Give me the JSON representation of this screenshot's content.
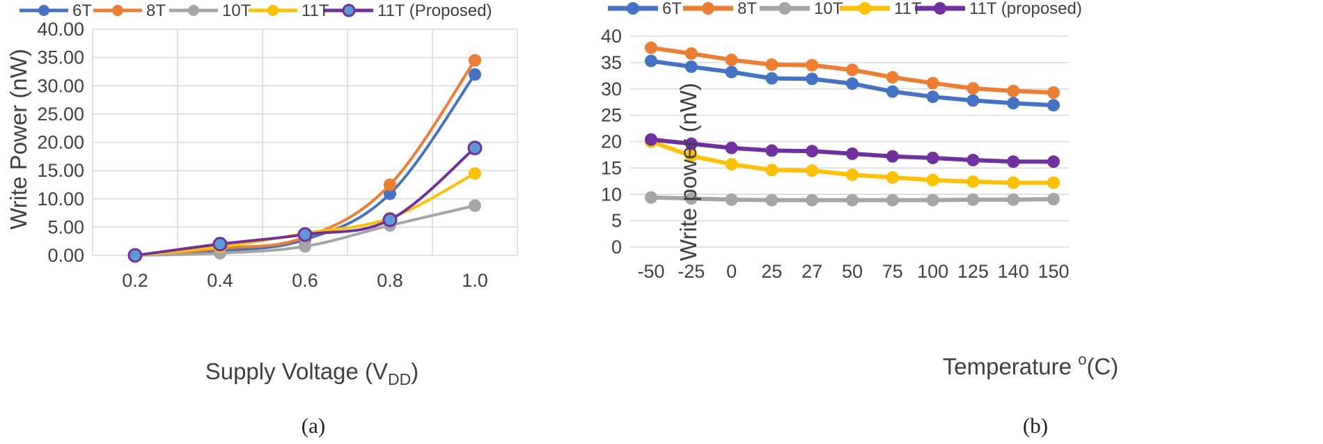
{
  "chart_data": [
    {
      "type": "line",
      "panel_label": "(a)",
      "smooth": true,
      "x": [
        0.2,
        0.4,
        0.6,
        0.8,
        1.0
      ],
      "categories": [
        "0.2",
        "0.4",
        "0.6",
        "0.8",
        "1.0"
      ],
      "xlabel_main": "Supply Voltage (V",
      "xlabel_sub": "DD",
      "xlabel_end": ")",
      "ylabel": "Write Power (nW)",
      "ylim": [
        0,
        40
      ],
      "yticks": [
        "0.00",
        "5.00",
        "10.00",
        "15.00",
        "20.00",
        "25.00",
        "30.00",
        "35.00",
        "40.00"
      ],
      "grid": true,
      "legend_position": "top",
      "series": [
        {
          "name": "6T",
          "color": "#4472c4",
          "values": [
            0.0,
            0.8,
            2.8,
            10.9,
            32.0
          ]
        },
        {
          "name": "8T",
          "color": "#ed7d31",
          "values": [
            0.0,
            1.2,
            3.2,
            12.5,
            34.5
          ]
        },
        {
          "name": "10T",
          "color": "#a5a5a5",
          "values": [
            0.0,
            0.4,
            1.6,
            5.3,
            8.8
          ]
        },
        {
          "name": "11T",
          "color": "#ffc000",
          "values": [
            0.0,
            1.5,
            3.9,
            6.6,
            14.5
          ]
        },
        {
          "name": "11T (Proposed)",
          "color": "#7030a0",
          "marker_fill": "#5b9bd5",
          "values": [
            0.0,
            2.0,
            3.7,
            6.3,
            19.0
          ]
        }
      ]
    },
    {
      "type": "line",
      "panel_label": "(b)",
      "smooth": false,
      "categories": [
        "-50",
        "-25",
        "0",
        "25",
        "27",
        "50",
        "75",
        "100",
        "125",
        "140",
        "150"
      ],
      "xlabel_main": "Temperature ",
      "xlabel_sup": "o",
      "xlabel_end": "(C)",
      "ylabel": "Write power (nW)",
      "ylim": [
        0,
        40
      ],
      "yticks": [
        "0",
        "5",
        "10",
        "15",
        "20",
        "25",
        "30",
        "35",
        "40"
      ],
      "grid": true,
      "legend_position": "top",
      "series": [
        {
          "name": "6T",
          "color": "#4472c4",
          "values": [
            35.3,
            34.2,
            33.2,
            32.0,
            31.9,
            31.0,
            29.5,
            28.5,
            27.8,
            27.3,
            26.9
          ]
        },
        {
          "name": "8T",
          "color": "#ed7d31",
          "values": [
            37.8,
            36.7,
            35.5,
            34.6,
            34.5,
            33.6,
            32.2,
            31.1,
            30.1,
            29.6,
            29.3
          ]
        },
        {
          "name": "10T",
          "color": "#a5a5a5",
          "values": [
            9.4,
            9.2,
            9.0,
            8.9,
            8.9,
            8.9,
            8.9,
            8.9,
            9.0,
            9.0,
            9.1
          ]
        },
        {
          "name": "11T",
          "color": "#ffc000",
          "values": [
            20.0,
            17.3,
            15.7,
            14.6,
            14.5,
            13.7,
            13.2,
            12.7,
            12.4,
            12.2,
            12.2
          ]
        },
        {
          "name": "11T (proposed)",
          "color": "#7030a0",
          "values": [
            20.4,
            19.6,
            18.8,
            18.3,
            18.2,
            17.7,
            17.2,
            16.9,
            16.5,
            16.2,
            16.2
          ]
        }
      ]
    }
  ]
}
